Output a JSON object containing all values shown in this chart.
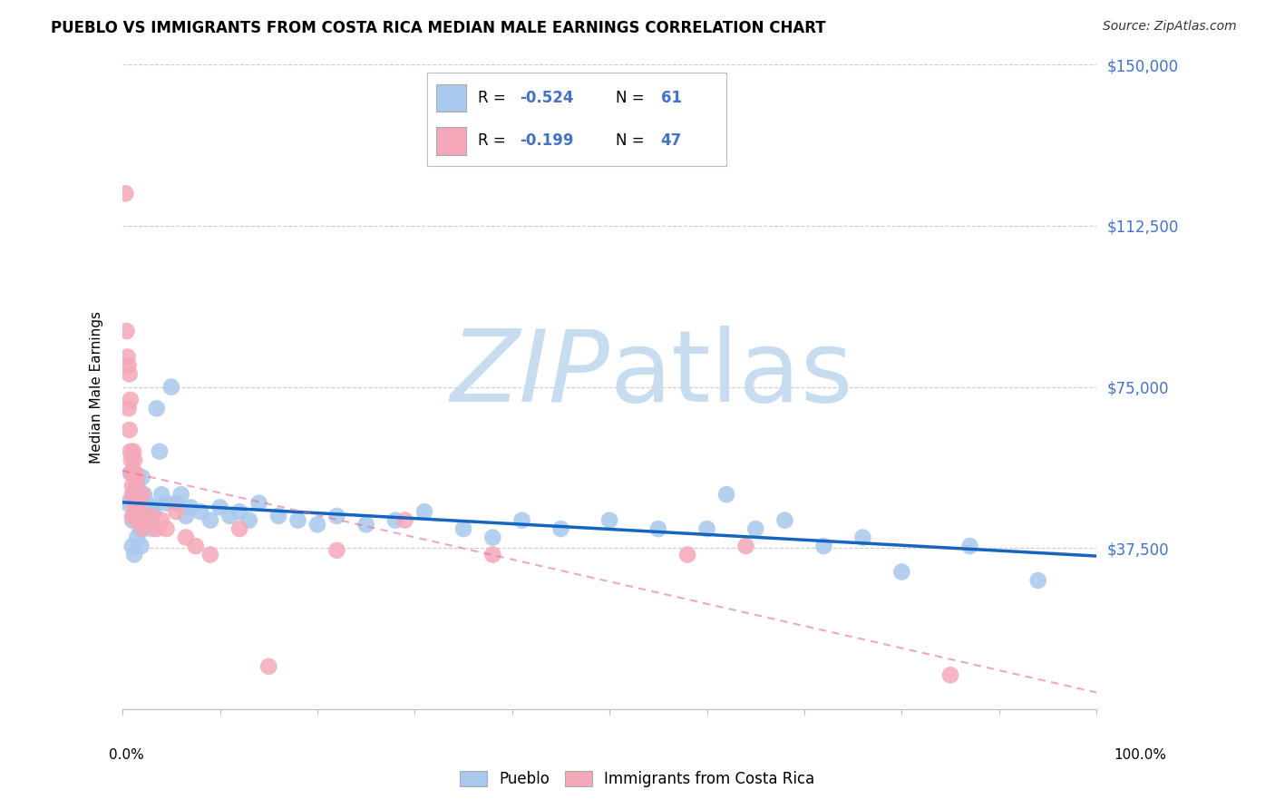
{
  "title": "PUEBLO VS IMMIGRANTS FROM COSTA RICA MEDIAN MALE EARNINGS CORRELATION CHART",
  "source": "Source: ZipAtlas.com",
  "ylabel": "Median Male Earnings",
  "yticks": [
    0,
    37500,
    75000,
    112500,
    150000
  ],
  "ytick_labels": [
    "",
    "$37,500",
    "$75,000",
    "$112,500",
    "$150,000"
  ],
  "xlim": [
    0.0,
    1.0
  ],
  "ylim": [
    0,
    150000
  ],
  "R_blue": -0.524,
  "N_blue": 61,
  "R_pink": -0.199,
  "N_pink": 47,
  "legend_labels": [
    "Pueblo",
    "Immigrants from Costa Rica"
  ],
  "blue_color": "#A8C8ED",
  "pink_color": "#F4A8B8",
  "trend_blue_color": "#1565C0",
  "trend_pink_color": "#E07090",
  "watermark_zip_color": "#C8DCF0",
  "watermark_atlas_color": "#C8DCF0",
  "blue_dots_x": [
    0.005,
    0.008,
    0.01,
    0.01,
    0.012,
    0.012,
    0.014,
    0.015,
    0.015,
    0.016,
    0.017,
    0.018,
    0.018,
    0.019,
    0.02,
    0.02,
    0.022,
    0.025,
    0.027,
    0.028,
    0.03,
    0.03,
    0.032,
    0.035,
    0.038,
    0.04,
    0.045,
    0.05,
    0.055,
    0.06,
    0.065,
    0.07,
    0.08,
    0.09,
    0.1,
    0.11,
    0.12,
    0.13,
    0.14,
    0.16,
    0.18,
    0.2,
    0.22,
    0.25,
    0.28,
    0.31,
    0.35,
    0.38,
    0.41,
    0.45,
    0.5,
    0.55,
    0.6,
    0.62,
    0.65,
    0.68,
    0.72,
    0.76,
    0.8,
    0.87,
    0.94
  ],
  "blue_dots_y": [
    48000,
    55000,
    44000,
    38000,
    50000,
    36000,
    47000,
    52000,
    40000,
    46000,
    44000,
    42000,
    48000,
    38000,
    54000,
    44000,
    50000,
    48000,
    46000,
    44000,
    47000,
    42000,
    46000,
    70000,
    60000,
    50000,
    48000,
    75000,
    48000,
    50000,
    45000,
    47000,
    46000,
    44000,
    47000,
    45000,
    46000,
    44000,
    48000,
    45000,
    44000,
    43000,
    45000,
    43000,
    44000,
    46000,
    42000,
    40000,
    44000,
    42000,
    44000,
    42000,
    42000,
    50000,
    42000,
    44000,
    38000,
    40000,
    32000,
    38000,
    30000
  ],
  "pink_dots_x": [
    0.003,
    0.004,
    0.005,
    0.006,
    0.006,
    0.007,
    0.007,
    0.008,
    0.008,
    0.009,
    0.009,
    0.01,
    0.01,
    0.01,
    0.011,
    0.011,
    0.012,
    0.012,
    0.013,
    0.013,
    0.014,
    0.014,
    0.015,
    0.015,
    0.016,
    0.017,
    0.018,
    0.019,
    0.02,
    0.021,
    0.025,
    0.03,
    0.035,
    0.04,
    0.045,
    0.055,
    0.065,
    0.075,
    0.09,
    0.12,
    0.15,
    0.22,
    0.29,
    0.38,
    0.58,
    0.64,
    0.85
  ],
  "pink_dots_y": [
    120000,
    88000,
    82000,
    80000,
    70000,
    78000,
    65000,
    72000,
    60000,
    58000,
    55000,
    52000,
    50000,
    45000,
    60000,
    55000,
    58000,
    48000,
    55000,
    46000,
    52000,
    44000,
    54000,
    46000,
    50000,
    48000,
    46000,
    44000,
    50000,
    42000,
    44000,
    45000,
    42000,
    44000,
    42000,
    46000,
    40000,
    38000,
    36000,
    42000,
    10000,
    37000,
    44000,
    36000,
    36000,
    38000,
    8000
  ]
}
